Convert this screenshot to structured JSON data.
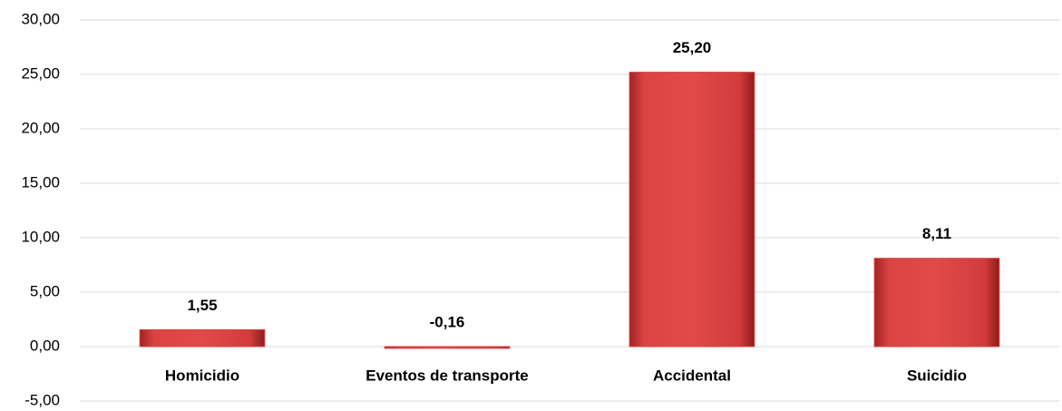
{
  "chart_data": {
    "type": "bar",
    "categories": [
      "Homicidio",
      "Eventos de transporte",
      "Accidental",
      "Suicidio"
    ],
    "values": [
      1.55,
      -0.16,
      25.2,
      8.11
    ],
    "value_labels": [
      "1,55",
      "-0,16",
      "25,20",
      "8,11"
    ],
    "color": "#d94040",
    "ylim": [
      -5,
      30
    ],
    "yticks": [
      {
        "value": -5,
        "label": "-5,00"
      },
      {
        "value": 0,
        "label": "0,00"
      },
      {
        "value": 5,
        "label": "5,00"
      },
      {
        "value": 10,
        "label": "10,00"
      },
      {
        "value": 15,
        "label": "15,00"
      },
      {
        "value": 20,
        "label": "20,00"
      },
      {
        "value": 25,
        "label": "25,00"
      },
      {
        "value": 30,
        "label": "30,00"
      }
    ],
    "grid": true
  }
}
